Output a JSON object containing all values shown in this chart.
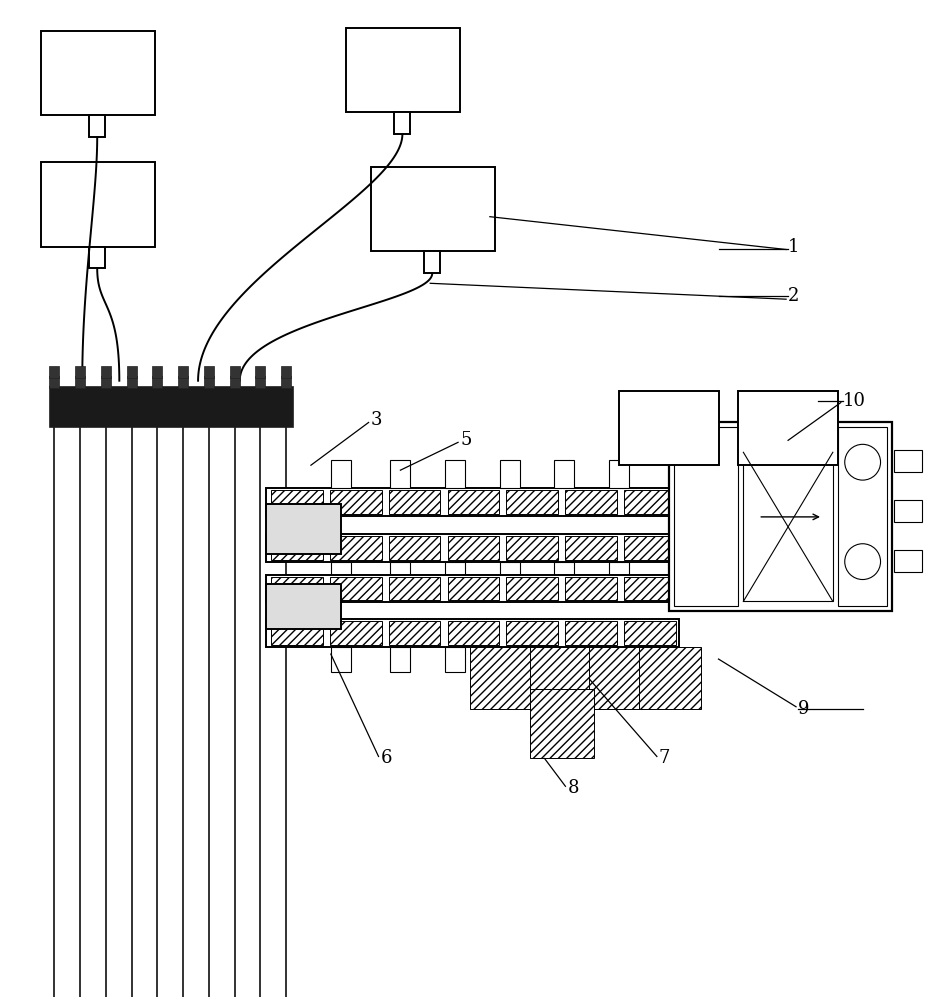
{
  "bg_color": "#ffffff",
  "line_color": "#000000",
  "fig_width": 9.36,
  "fig_height": 10.0,
  "lw_main": 1.4,
  "lw_thin": 0.8,
  "label_fs": 13
}
